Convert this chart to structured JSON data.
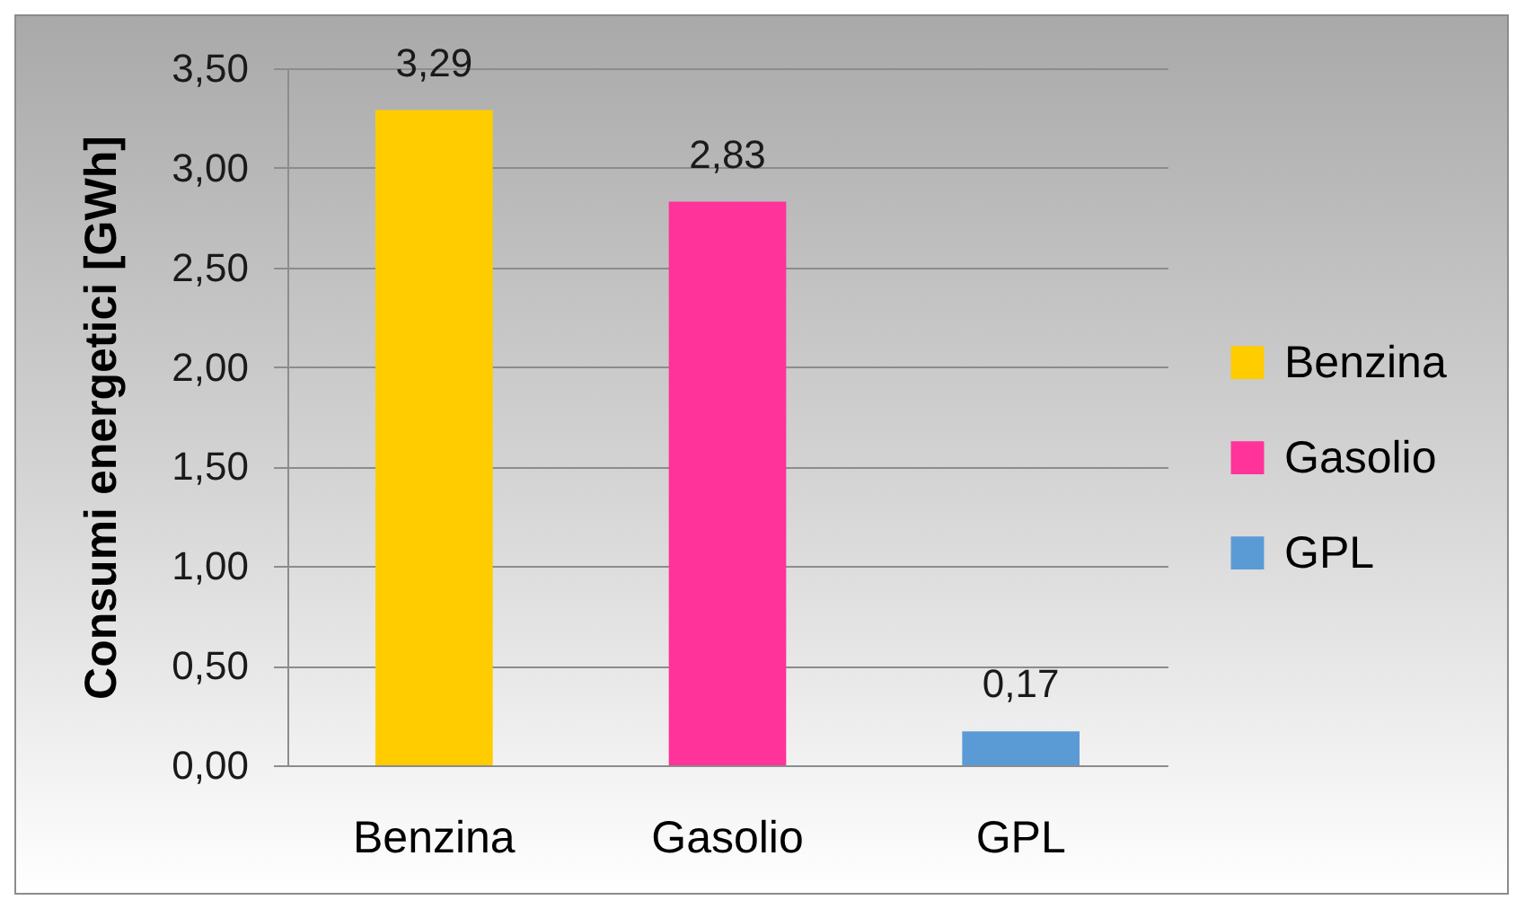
{
  "chart_data": {
    "type": "bar",
    "categories": [
      "Benzina",
      "Gasolio",
      "GPL"
    ],
    "stacked": true,
    "series": [
      {
        "name": "Benzina",
        "color": "#ffcc00",
        "values": [
          3.29,
          null,
          null
        ],
        "value_labels": [
          "3,29",
          null,
          null
        ]
      },
      {
        "name": "Gasolio",
        "color": "#ff3399",
        "values": [
          null,
          2.83,
          null
        ],
        "value_labels": [
          null,
          "2,83",
          null
        ]
      },
      {
        "name": "GPL",
        "color": "#5b9bd5",
        "values": [
          null,
          null,
          0.17
        ],
        "value_labels": [
          null,
          null,
          "0,17"
        ]
      }
    ],
    "ylabel": "Consumi energetici [GWh]",
    "ylim": [
      0,
      3.5
    ],
    "yticks": [
      {
        "value": 0,
        "label": "0,00"
      },
      {
        "value": 0.5,
        "label": "0,50"
      },
      {
        "value": 1,
        "label": "1,00"
      },
      {
        "value": 1.5,
        "label": "1,50"
      },
      {
        "value": 2,
        "label": "2,00"
      },
      {
        "value": 2.5,
        "label": "2,50"
      },
      {
        "value": 3,
        "label": "3,00"
      },
      {
        "value": 3.5,
        "label": "3,50"
      }
    ],
    "grid": "y",
    "legend": "right"
  }
}
